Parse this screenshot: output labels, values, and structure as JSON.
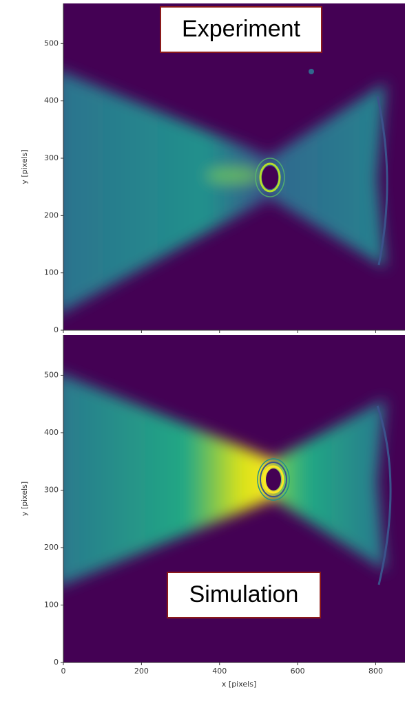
{
  "chart_data": [
    {
      "type": "heatmap",
      "annotation": "Experiment",
      "ylabel": "y [pixels]",
      "xlim": [
        0,
        875
      ],
      "ylim": [
        0,
        570
      ],
      "xticks": [
        0,
        200,
        400,
        600,
        800
      ],
      "yticks": [
        0,
        100,
        200,
        300,
        400,
        500
      ]
    },
    {
      "type": "heatmap",
      "annotation": "Simulation",
      "ylabel": "y [pixels]",
      "xlabel": "x [pixels]",
      "xlim": [
        0,
        875
      ],
      "ylim": [
        0,
        570
      ],
      "xticks": [
        0,
        200,
        400,
        600,
        800
      ],
      "yticks": [
        0,
        100,
        200,
        300,
        400,
        500
      ]
    }
  ]
}
